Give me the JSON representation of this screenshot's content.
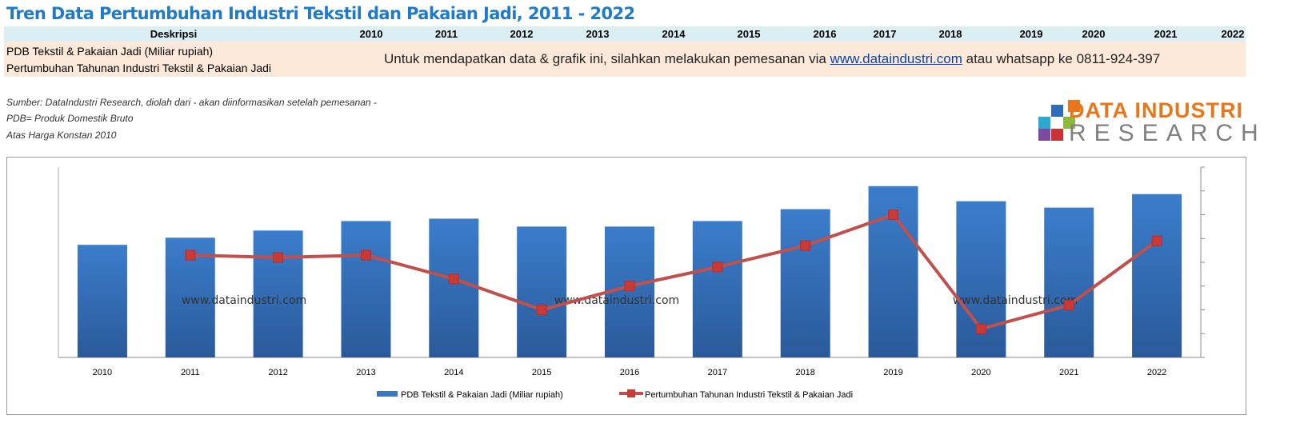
{
  "title": "Tren Data Pertumbuhan Industri Tekstil dan Pakaian Jadi, 2011 - 2022",
  "table": {
    "header": "Deskripsi",
    "years": [
      "2010",
      "2011",
      "2012",
      "2013",
      "2014",
      "2015",
      "2016",
      "2017",
      "2018",
      "2019",
      "2020",
      "2021",
      "2022"
    ],
    "rows": [
      "PDB Tekstil & Pakaian Jadi (Miliar rupiah)",
      "Pertumbuhan Tahunan Industri Tekstil & Pakaian Jadi"
    ],
    "message_before": "Untuk mendapatkan data & grafik ini, silahkan melakukan pemesanan via ",
    "message_link": "www.dataindustri.com",
    "message_after": " atau whatsapp ke 0811-924-397"
  },
  "notes": [
    "Sumber: DataIndustri Research, diolah dari - akan diinformasikan setelah pemesanan -",
    "PDB= Produk Domestik Bruto",
    "Atas Harga Konstan 2010"
  ],
  "logo": {
    "line1": "DATA INDUSTRI",
    "line2": "RESEARCH"
  },
  "watermark": "www.dataindustri.com",
  "chart_data": {
    "type": "bar+line",
    "categories": [
      "2010",
      "2011",
      "2012",
      "2013",
      "2014",
      "2015",
      "2016",
      "2017",
      "2018",
      "2019",
      "2020",
      "2021",
      "2022"
    ],
    "series": [
      {
        "name": "PDB Tekstil & Pakaian Jadi (Miliar rupiah)",
        "type": "bar",
        "axis": "left",
        "color": "#3A78C3",
        "values": [
          142,
          151,
          160,
          172,
          175,
          165,
          165,
          172,
          187,
          216,
          197,
          189,
          206
        ]
      },
      {
        "name": "Pertumbuhan Tahunan Industri Tekstil & Pakaian Jadi",
        "type": "line",
        "axis": "right",
        "color": "#C0504D",
        "values": [
          null,
          4.3,
          4.2,
          4.3,
          3.3,
          2.0,
          3.0,
          3.8,
          4.7,
          6.0,
          1.2,
          2.2,
          4.9
        ]
      }
    ],
    "ylim_left": [
      0,
      240
    ],
    "ylim_right": [
      0,
      8
    ],
    "axis_value_labels": "hidden",
    "grid": false,
    "legend": "bottom"
  }
}
